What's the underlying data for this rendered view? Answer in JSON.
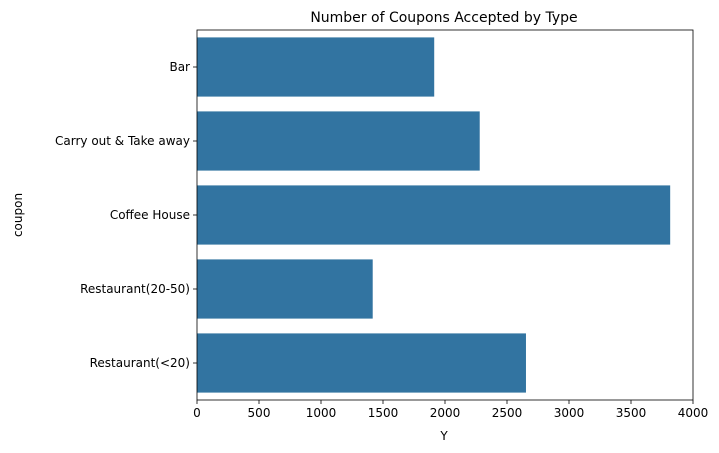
{
  "chart_data": {
    "type": "bar",
    "orientation": "horizontal",
    "title": "Number of Coupons Accepted by Type",
    "xlabel": "Y",
    "ylabel": "coupon",
    "categories": [
      "Bar",
      "Carry out & Take away",
      "Coffee House",
      "Restaurant(20-50)",
      "Restaurant(<20)"
    ],
    "values": [
      1913,
      2280,
      3816,
      1417,
      2653
    ],
    "xlim": [
      0,
      4000
    ],
    "xticks": [
      0,
      500,
      1000,
      1500,
      2000,
      2500,
      3000,
      3500,
      4000
    ],
    "xtick_labels": [
      "0",
      "500",
      "1000",
      "1500",
      "2000",
      "2500",
      "3000",
      "3500",
      "4000"
    ],
    "grid": false,
    "bar_color": "#3274a1"
  }
}
